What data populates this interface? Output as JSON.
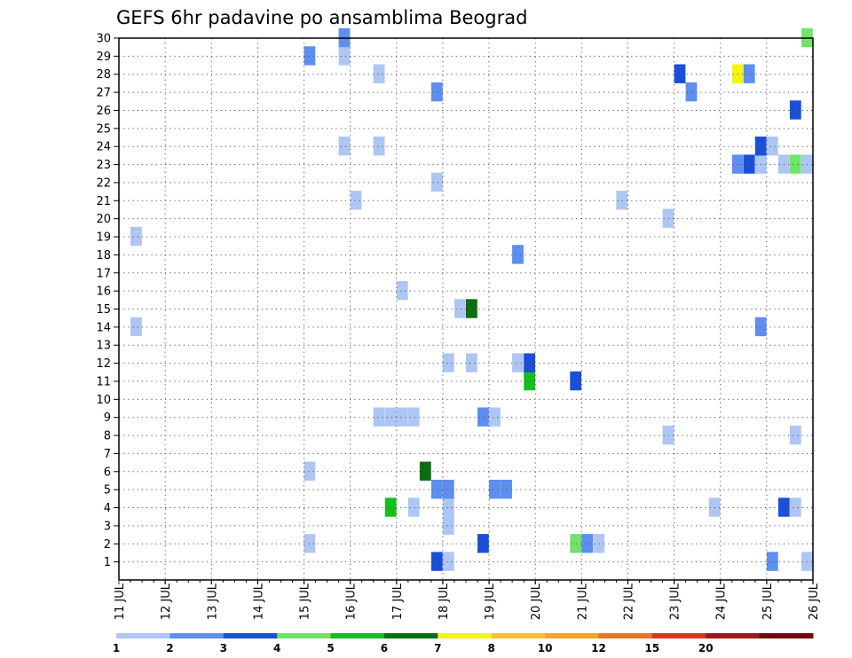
{
  "chart_data": {
    "type": "heatmap",
    "title": "GEFS 6hr padavine po ansamblima Beograd",
    "xlabel": "",
    "ylabel": "",
    "x_ticks": [
      "11 JUL",
      "12 JUL",
      "13 JUL",
      "14 JUL",
      "15 JUL",
      "16 JUL",
      "17 JUL",
      "18 JUL",
      "19 JUL",
      "20 JUL",
      "21 JUL",
      "22 JUL",
      "23 JUL",
      "24 JUL",
      "25 JUL",
      "26 JUL"
    ],
    "x_start_day": 11,
    "x_end_day": 26,
    "x_step_hours": 6,
    "y_ticks": [
      1,
      2,
      3,
      4,
      5,
      6,
      7,
      8,
      9,
      10,
      11,
      12,
      13,
      14,
      15,
      16,
      17,
      18,
      19,
      20,
      21,
      22,
      23,
      24,
      25,
      26,
      27,
      28,
      29,
      30
    ],
    "ylim": [
      0,
      30
    ],
    "grid": true,
    "colorbar": {
      "position": "bottom",
      "labels": [
        "1",
        "2",
        "3",
        "4",
        "5",
        "6",
        "7",
        "8",
        "10",
        "12",
        "15",
        "20"
      ],
      "colors": [
        "#aec6f3",
        "#5d8ef0",
        "#1a4fd8",
        "#6fe36a",
        "#12c21a",
        "#0a6e10",
        "#f4f410",
        "#f6c235",
        "#f5a523",
        "#f07318",
        "#d8361a",
        "#a4141a",
        "#6e0a10"
      ]
    },
    "levels": [
      1,
      2,
      3,
      4,
      5,
      6,
      7,
      8,
      10,
      12,
      15,
      20
    ],
    "cells": [
      {
        "day": 11.25,
        "member": 1,
        "value": 0
      },
      {
        "day": 11.25,
        "member": 14,
        "value": 1.5
      },
      {
        "day": 11.25,
        "member": 19,
        "value": 1.5
      },
      {
        "day": 15.0,
        "member": 1,
        "value": 0
      },
      {
        "day": 15.0,
        "member": 2,
        "value": 1.5
      },
      {
        "day": 15.0,
        "member": 6,
        "value": 1.5
      },
      {
        "day": 15.0,
        "member": 29,
        "value": 2.5
      },
      {
        "day": 15.75,
        "member": 24,
        "value": 1.5
      },
      {
        "day": 15.75,
        "member": 29,
        "value": 1.5
      },
      {
        "day": 15.75,
        "member": 30,
        "value": 2.5
      },
      {
        "day": 16.0,
        "member": 21,
        "value": 1.5
      },
      {
        "day": 16.5,
        "member": 9,
        "value": 1.5
      },
      {
        "day": 16.5,
        "member": 24,
        "value": 1.5
      },
      {
        "day": 16.5,
        "member": 28,
        "value": 1.5
      },
      {
        "day": 16.75,
        "member": 4,
        "value": 5.5
      },
      {
        "day": 16.75,
        "member": 9,
        "value": 1.5
      },
      {
        "day": 17.0,
        "member": 16,
        "value": 1.5
      },
      {
        "day": 17.0,
        "member": 9,
        "value": 1.5
      },
      {
        "day": 17.25,
        "member": 4,
        "value": 1.5
      },
      {
        "day": 17.25,
        "member": 9,
        "value": 1.5
      },
      {
        "day": 17.5,
        "member": 6,
        "value": 6.5
      },
      {
        "day": 17.75,
        "member": 1,
        "value": 3.5
      },
      {
        "day": 17.75,
        "member": 5,
        "value": 2.5
      },
      {
        "day": 17.75,
        "member": 22,
        "value": 1.5
      },
      {
        "day": 17.75,
        "member": 27,
        "value": 2.5
      },
      {
        "day": 18.0,
        "member": 1,
        "value": 1.5
      },
      {
        "day": 18.0,
        "member": 3,
        "value": 1.5
      },
      {
        "day": 18.0,
        "member": 4,
        "value": 1.5
      },
      {
        "day": 18.0,
        "member": 5,
        "value": 2.5
      },
      {
        "day": 18.0,
        "member": 12,
        "value": 1.5
      },
      {
        "day": 18.25,
        "member": 15,
        "value": 1.5
      },
      {
        "day": 18.5,
        "member": 12,
        "value": 1.5
      },
      {
        "day": 18.5,
        "member": 15,
        "value": 6.5
      },
      {
        "day": 18.75,
        "member": 2,
        "value": 3.5
      },
      {
        "day": 18.75,
        "member": 9,
        "value": 2.5
      },
      {
        "day": 19.0,
        "member": 5,
        "value": 2.5
      },
      {
        "day": 19.0,
        "member": 9,
        "value": 1.5
      },
      {
        "day": 19.25,
        "member": 5,
        "value": 2.5
      },
      {
        "day": 19.5,
        "member": 12,
        "value": 1.5
      },
      {
        "day": 19.5,
        "member": 18,
        "value": 2.5
      },
      {
        "day": 19.75,
        "member": 11,
        "value": 5.5
      },
      {
        "day": 19.75,
        "member": 12,
        "value": 3.5
      },
      {
        "day": 20.75,
        "member": 2,
        "value": 4.5
      },
      {
        "day": 20.75,
        "member": 11,
        "value": 3.5
      },
      {
        "day": 21.0,
        "member": 2,
        "value": 2.5
      },
      {
        "day": 21.25,
        "member": 2,
        "value": 1.5
      },
      {
        "day": 21.75,
        "member": 21,
        "value": 1.5
      },
      {
        "day": 22.75,
        "member": 8,
        "value": 1.5
      },
      {
        "day": 22.75,
        "member": 20,
        "value": 1.5
      },
      {
        "day": 23.0,
        "member": 28,
        "value": 3.5
      },
      {
        "day": 23.25,
        "member": 27,
        "value": 2.5
      },
      {
        "day": 23.75,
        "member": 4,
        "value": 1.5
      },
      {
        "day": 24.25,
        "member": 23,
        "value": 2.5
      },
      {
        "day": 24.25,
        "member": 28,
        "value": 7.5
      },
      {
        "day": 24.5,
        "member": 23,
        "value": 3.5
      },
      {
        "day": 24.5,
        "member": 28,
        "value": 2.5
      },
      {
        "day": 24.75,
        "member": 14,
        "value": 2.5
      },
      {
        "day": 24.75,
        "member": 23,
        "value": 1.5
      },
      {
        "day": 24.75,
        "member": 24,
        "value": 3.5
      },
      {
        "day": 25.0,
        "member": 1,
        "value": 2.5
      },
      {
        "day": 25.0,
        "member": 24,
        "value": 1.5
      },
      {
        "day": 25.25,
        "member": 4,
        "value": 3.5
      },
      {
        "day": 25.25,
        "member": 23,
        "value": 1.5
      },
      {
        "day": 25.5,
        "member": 4,
        "value": 1.5
      },
      {
        "day": 25.5,
        "member": 8,
        "value": 1.5
      },
      {
        "day": 25.5,
        "member": 23,
        "value": 4.5
      },
      {
        "day": 25.5,
        "member": 26,
        "value": 3.5
      },
      {
        "day": 25.75,
        "member": 1,
        "value": 1.5
      },
      {
        "day": 25.75,
        "member": 23,
        "value": 1.5
      },
      {
        "day": 25.75,
        "member": 30,
        "value": 4.5
      }
    ]
  }
}
